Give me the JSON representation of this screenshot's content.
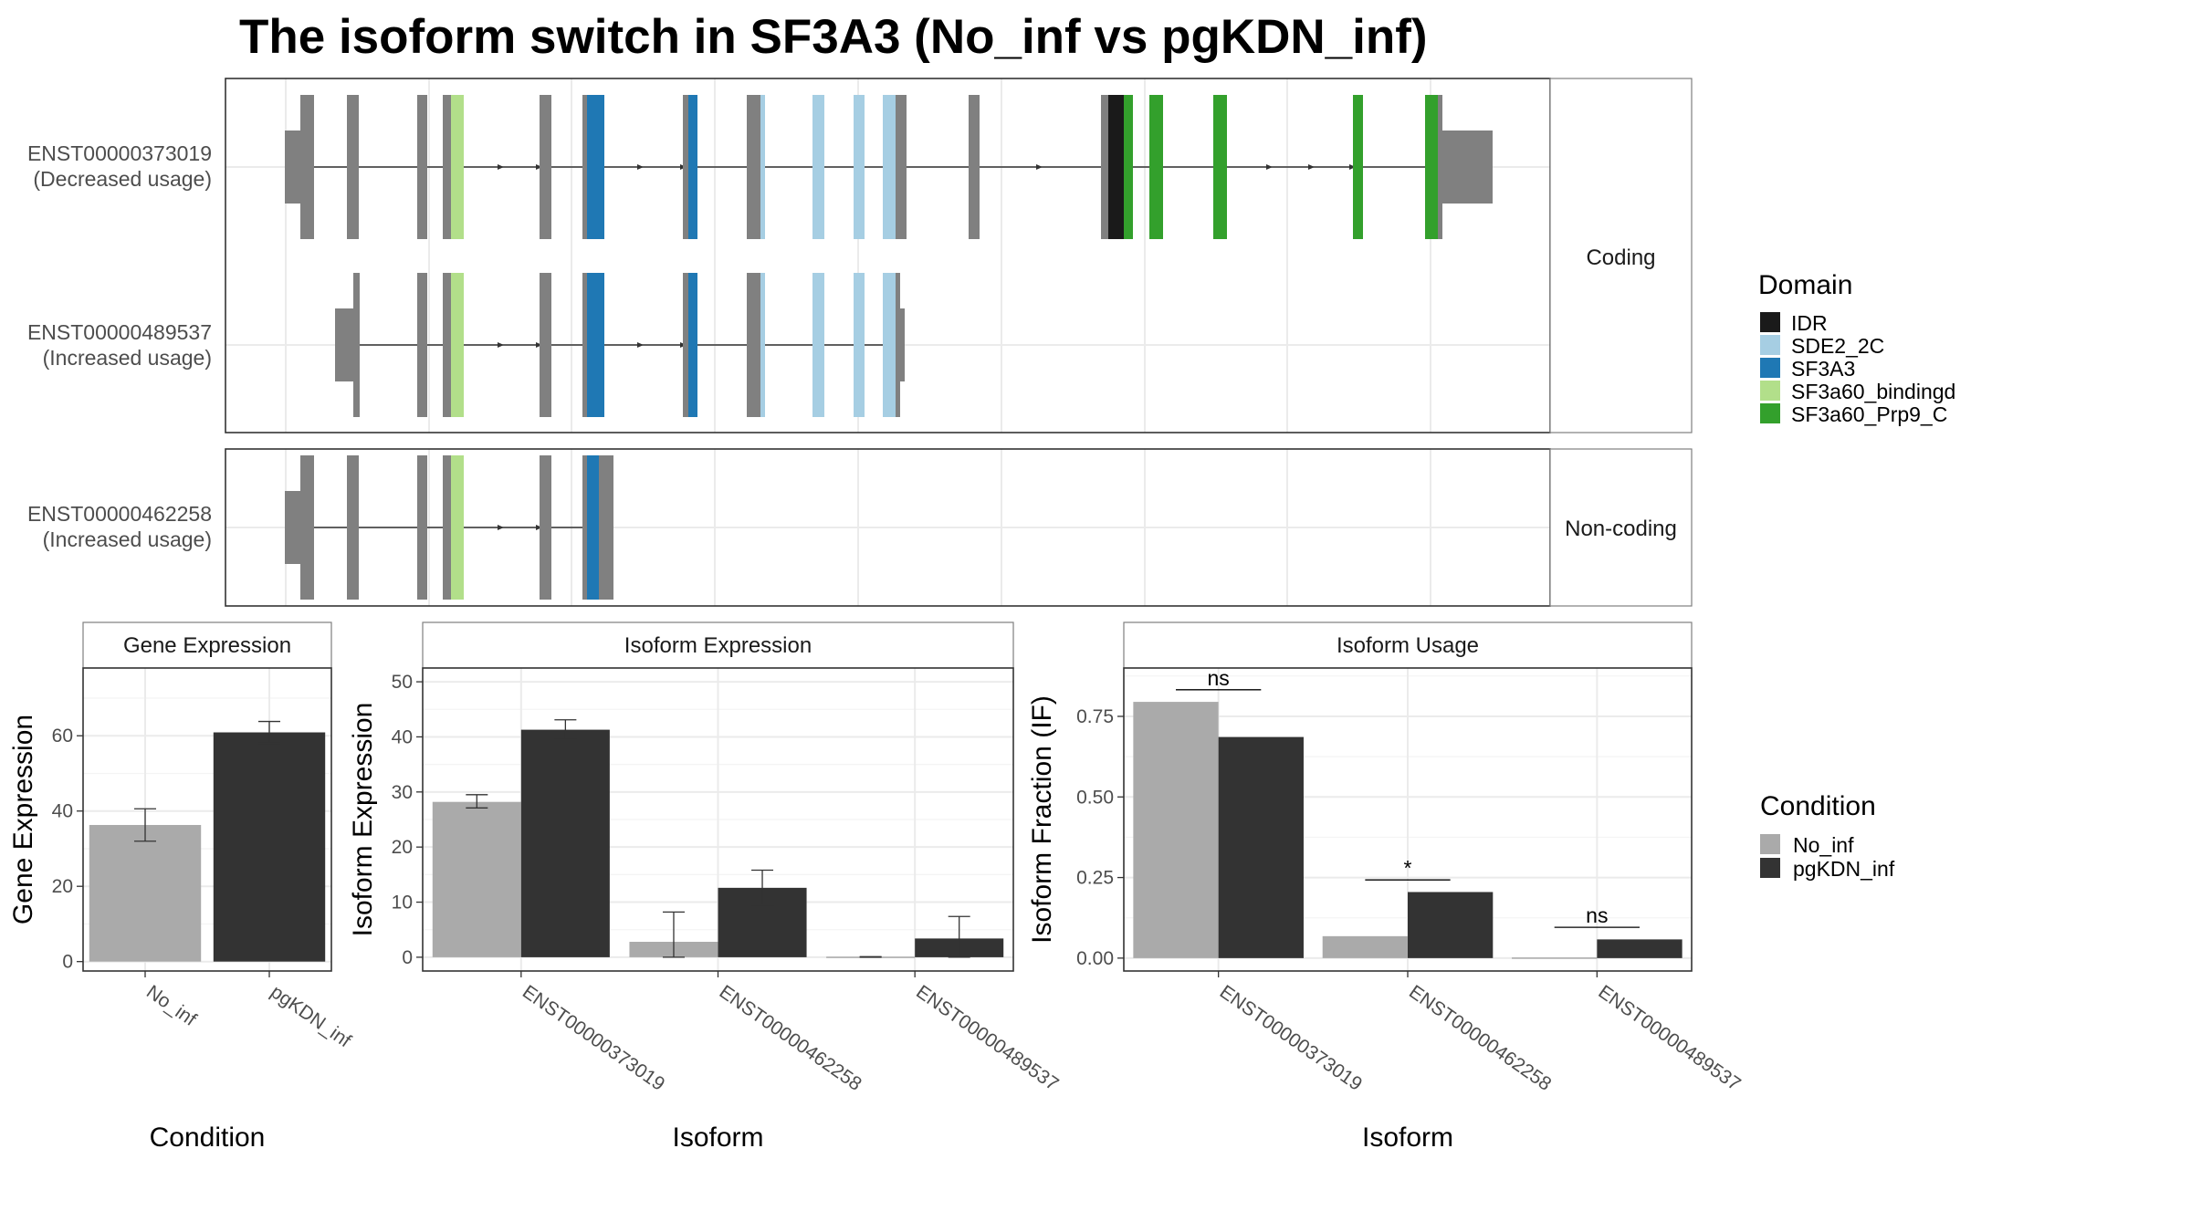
{
  "title": "The isoform switch in SF3A3 (No_inf vs pgKDN_inf)",
  "colors": {
    "IDR": "#1a1a1a",
    "SDE2_2C": "#a6cee3",
    "SF3A3": "#1f78b4",
    "SF3a60_bindingd": "#b2df8a",
    "SF3a60_Prp9_C": "#33a02c",
    "exon": "#808080",
    "No_inf": "#aaaaaa",
    "pgKDN_inf": "#333333"
  },
  "facets": {
    "coding": "Coding",
    "noncoding": "Non-coding"
  },
  "isoforms": [
    {
      "id": "ENST00000373019",
      "usage": "(Decreased usage)"
    },
    {
      "id": "ENST00000489537",
      "usage": "(Increased usage)"
    },
    {
      "id": "ENST00000462258",
      "usage": "(Increased usage)"
    }
  ],
  "domain_legend": {
    "title": "Domain",
    "items": [
      {
        "label": "IDR",
        "color": "#1a1a1a"
      },
      {
        "label": "SDE2_2C",
        "color": "#a6cee3"
      },
      {
        "label": "SF3A3",
        "color": "#1f78b4"
      },
      {
        "label": "SF3a60_bindingd",
        "color": "#b2df8a"
      },
      {
        "label": "SF3a60_Prp9_C",
        "color": "#33a02c"
      }
    ]
  },
  "condition_legend": {
    "title": "Condition",
    "items": [
      {
        "label": "No_inf",
        "color": "#aaaaaa"
      },
      {
        "label": "pgKDN_inf",
        "color": "#333333"
      }
    ]
  },
  "chart_data": [
    {
      "type": "bar",
      "strip": "Gene Expression",
      "xlabel": "Condition",
      "ylabel": "Gene Expression",
      "categories": [
        "No_inf",
        "pgKDN_inf"
      ],
      "values": [
        36.3,
        60.9
      ],
      "errors": [
        [
          32.0,
          40.6
        ],
        [
          58.0,
          63.8
        ]
      ],
      "ylim": [
        -2.5,
        78
      ],
      "yticks": [
        0,
        20,
        40,
        60
      ],
      "grid": true
    },
    {
      "type": "bar",
      "strip": "Isoform Expression",
      "xlabel": "Isoform",
      "ylabel": "Isoform Expression",
      "categories": [
        "ENST00000373019",
        "ENST00000462258",
        "ENST00000489537"
      ],
      "series": [
        {
          "name": "No_inf",
          "values": [
            28.2,
            2.8,
            0.1
          ],
          "errors": [
            [
              27.1,
              29.5
            ],
            [
              0.0,
              8.2
            ],
            [
              0.0,
              0.1
            ]
          ]
        },
        {
          "name": "pgKDN_inf",
          "values": [
            41.3,
            12.6,
            3.4
          ],
          "errors": [
            [
              39.6,
              43.1
            ],
            [
              9.4,
              15.8
            ],
            [
              0.0,
              7.4
            ]
          ]
        }
      ],
      "ylim": [
        -2.5,
        52.5
      ],
      "yticks": [
        0,
        10,
        20,
        30,
        40,
        50
      ],
      "grid": true
    },
    {
      "type": "bar",
      "strip": "Isoform Usage",
      "xlabel": "Isoform",
      "ylabel": "Isoform Fraction (IF)",
      "categories": [
        "ENST00000373019",
        "ENST00000462258",
        "ENST00000489537"
      ],
      "series": [
        {
          "name": "No_inf",
          "values": [
            0.795,
            0.068,
            0.002
          ]
        },
        {
          "name": "pgKDN_inf",
          "values": [
            0.686,
            0.205,
            0.058
          ]
        }
      ],
      "significance": [
        "ns",
        "*",
        "ns"
      ],
      "ylim": [
        -0.04,
        0.9
      ],
      "yticks": [
        0.0,
        0.25,
        0.5,
        0.75
      ],
      "yticklabels": [
        "0.00",
        "0.25",
        "0.50",
        "0.75"
      ],
      "grid": true
    }
  ]
}
